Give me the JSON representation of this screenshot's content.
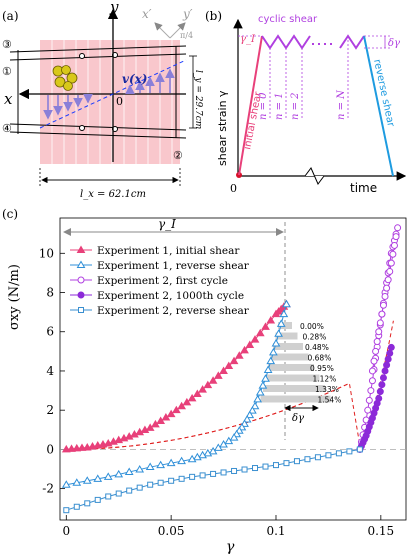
{
  "panel_a": {
    "label": "(a)",
    "axis_x": "x",
    "axis_y": "y",
    "axis_xp": "x′",
    "axis_yp": "y′",
    "angle": "π/4",
    "velocity_label": "v(x)",
    "origin": "0",
    "ly": "l_y = 29.7cm",
    "lx": "l_x = 62.1cm",
    "markers": [
      "③",
      "①",
      "④",
      "②"
    ]
  },
  "panel_b": {
    "label": "(b)",
    "title": "cyclic shear",
    "gamma_i": "γ_I",
    "delta_gamma": "δγ",
    "initial": "initial shear",
    "reverse": "reverse shear",
    "ylabel": "shear strain γ",
    "xlabel": "time",
    "origin": "0",
    "cycle_labels": [
      "n = 0",
      "n = 1",
      "n = 2",
      "n = N"
    ]
  },
  "panel_c": {
    "label": "(c)",
    "gamma_i_label": "γ_I",
    "delta_gamma": "δγ",
    "ylabel": "σxy (N/m)",
    "xlabel": "γ",
    "inset_pcts": [
      "0.00%",
      "0.28%",
      "0.48%",
      "0.68%",
      "0.95%",
      "1.12%",
      "1.33%",
      "1.54%"
    ]
  },
  "chart_data": {
    "type": "line",
    "xlabel": "γ",
    "ylabel": "σxy (N/m)",
    "xlim": [
      -0.003,
      0.162
    ],
    "ylim": [
      -3.6,
      11.8
    ],
    "xticks": [
      0,
      0.05,
      0.1,
      0.15
    ],
    "xtick_labels": [
      "0",
      "0.05",
      "0.1",
      "0.15"
    ],
    "yticks": [
      -2,
      0,
      2,
      4,
      6,
      8,
      10
    ],
    "ytick_labels": [
      "-2",
      "0",
      "2",
      "4",
      "6",
      "8",
      "10"
    ],
    "legend_position": "top-left",
    "series": [
      {
        "name": "Experiment 1, initial shear",
        "color": "#e8407a",
        "marker": "triangle-filled",
        "x": [
          0,
          0.01,
          0.02,
          0.03,
          0.04,
          0.05,
          0.06,
          0.07,
          0.08,
          0.09,
          0.1,
          0.105
        ],
        "y": [
          0,
          0.1,
          0.3,
          0.65,
          1.1,
          1.8,
          2.6,
          3.5,
          4.5,
          5.6,
          6.9,
          7.4
        ]
      },
      {
        "name": "Experiment 1, reverse shear",
        "color": "#2f8fd8",
        "marker": "triangle-open",
        "x": [
          0.105,
          0.1,
          0.095,
          0.09,
          0.085,
          0.08,
          0.07,
          0.06,
          0.04,
          0.02,
          0
        ],
        "y": [
          7.4,
          5.4,
          3.6,
          2.2,
          1.3,
          0.6,
          -0.1,
          -0.5,
          -0.9,
          -1.4,
          -1.8
        ]
      },
      {
        "name": "Experiment 2, first cycle",
        "color": "#b040e0",
        "marker": "circle-open",
        "x": [
          0.14,
          0.143,
          0.146,
          0.149,
          0.152,
          0.155,
          0.158,
          0.155,
          0.152,
          0.149,
          0.146
        ],
        "y": [
          0,
          1.5,
          3.5,
          5.8,
          8.0,
          10.0,
          11.3,
          9.5,
          7.8,
          6.0,
          4.0
        ]
      },
      {
        "name": "Experiment 2, 1000th cycle",
        "color": "#8c2ad8",
        "marker": "circle-filled",
        "x": [
          0.14,
          0.143,
          0.146,
          0.149,
          0.152,
          0.155
        ],
        "y": [
          0,
          0.7,
          1.6,
          2.6,
          4.0,
          5.2
        ]
      },
      {
        "name": "Experiment 2, reverse shear",
        "color": "#3a8fd0",
        "marker": "square-open",
        "x": [
          0.14,
          0.12,
          0.1,
          0.08,
          0.06,
          0.04,
          0.02,
          0
        ],
        "y": [
          0,
          -0.4,
          -0.8,
          -1.1,
          -1.4,
          -1.8,
          -2.4,
          -3.1
        ]
      }
    ]
  }
}
